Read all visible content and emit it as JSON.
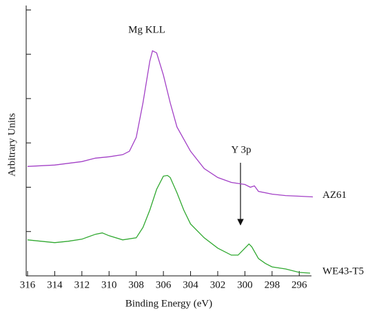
{
  "chart_data": {
    "type": "line",
    "xlabel": "Binding Energy (eV)",
    "ylabel": "Arbitrary Units",
    "xlim": [
      316.1,
      295.1
    ],
    "xticks": [
      316,
      314,
      312,
      310,
      308,
      306,
      304,
      302,
      300,
      298,
      296
    ],
    "ylim": [
      0,
      6.1
    ],
    "yticks": [
      0,
      1,
      2,
      3,
      4,
      5,
      6
    ],
    "ytick_labels": false,
    "annotations": [
      "Mg KLL",
      "Y 3p"
    ],
    "series": [
      {
        "name": "AZ61",
        "color": "#a23fc6",
        "x": [
          316,
          314,
          312,
          311,
          310,
          309,
          308.5,
          308,
          307.5,
          307,
          306.8,
          306.5,
          306,
          305.5,
          305,
          304,
          303,
          302,
          301,
          300,
          299.6,
          299.3,
          299,
          298,
          297,
          296,
          295
        ],
        "values": [
          2.469,
          2.5,
          2.578,
          2.656,
          2.688,
          2.734,
          2.812,
          3.125,
          3.906,
          4.844,
          5.078,
          5.031,
          4.531,
          3.906,
          3.359,
          2.812,
          2.422,
          2.219,
          2.109,
          2.062,
          2.0,
          2.031,
          1.906,
          1.844,
          1.812,
          1.797,
          1.781
        ]
      },
      {
        "name": "WE43-T5",
        "color": "#2fa82f",
        "x": [
          316,
          315,
          314,
          313,
          312,
          311,
          310.5,
          310,
          309,
          308,
          307.5,
          307,
          306.5,
          306,
          305.7,
          305.5,
          305,
          304.5,
          304,
          303,
          302,
          301,
          300.5,
          300,
          299.7,
          299.5,
          299,
          298.5,
          298,
          297,
          296,
          295.2
        ],
        "values": [
          0.812,
          0.781,
          0.75,
          0.781,
          0.828,
          0.938,
          0.969,
          0.906,
          0.812,
          0.859,
          1.094,
          1.484,
          1.953,
          2.25,
          2.266,
          2.219,
          1.875,
          1.484,
          1.172,
          0.859,
          0.625,
          0.469,
          0.469,
          0.625,
          0.719,
          0.656,
          0.391,
          0.281,
          0.203,
          0.156,
          0.078,
          0.062
        ]
      }
    ]
  }
}
